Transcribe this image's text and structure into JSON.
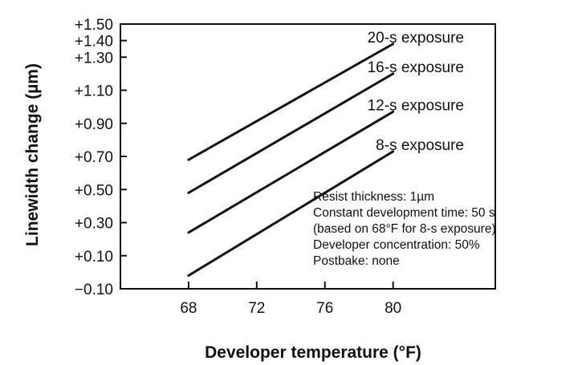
{
  "chart_data": {
    "type": "line",
    "xlabel": "Developer temperature (°F)",
    "ylabel": "Linewidth change (µm)",
    "xlim": [
      64,
      86
    ],
    "ylim": [
      -0.1,
      1.5
    ],
    "x_ticks": [
      68,
      72,
      76,
      80
    ],
    "y_ticks": [
      -0.1,
      0.1,
      0.3,
      0.5,
      0.7,
      0.9,
      1.1,
      1.3,
      1.4,
      1.5
    ],
    "y_tick_labels": [
      "−0.10",
      "+0.10",
      "+0.30",
      "+0.50",
      "+0.70",
      "+0.90",
      "+1.10",
      "+1.30",
      "+1.40",
      "+1.50"
    ],
    "grid": false,
    "series": [
      {
        "name": "20-s exposure",
        "x": [
          68,
          80
        ],
        "y": [
          0.68,
          1.38
        ]
      },
      {
        "name": "16-s exposure",
        "x": [
          68,
          80
        ],
        "y": [
          0.48,
          1.2
        ]
      },
      {
        "name": "12-s exposure",
        "x": [
          68,
          80
        ],
        "y": [
          0.24,
          0.97
        ]
      },
      {
        "name": "8-s exposure",
        "x": [
          68,
          80
        ],
        "y": [
          -0.02,
          0.73
        ]
      }
    ],
    "annotations": [
      "Resist thickness: 1µm",
      "Constant development time: 50 s",
      "(based on 68°F for 8-s exposure)",
      "Developer concentration: 50%",
      "Postbake: none"
    ]
  }
}
